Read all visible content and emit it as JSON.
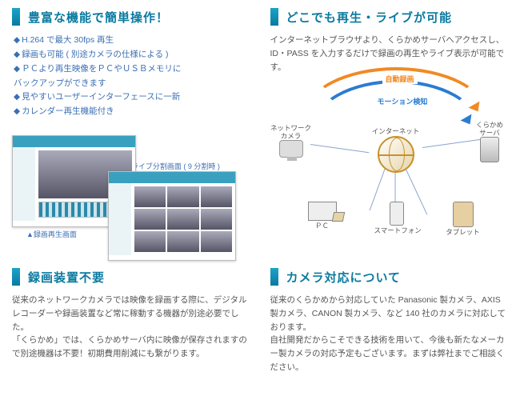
{
  "sections": {
    "features": {
      "title": "豊富な機能で簡単操作！",
      "bullets": [
        "H.264 で最大 30fps 再生",
        "録画も可能 ( 別途カメラの仕様による )",
        "ＰＣより再生映像をＰＣやＵＳＢメモリに\nバックアップができます",
        "見やすいユーザーインターフェースに一新",
        "カレンダー再生機能付き"
      ],
      "caption_left": "▲録画再生画面",
      "caption_right": "▼ライブ分割画面 ( 9 分割時 )"
    },
    "anywhere": {
      "title": "どこでも再生・ライブが可能",
      "desc": "インターネットブラウザより、くらかめサーバへアクセスし、ID・PASS を入力するだけで録画の再生やライブ表示が可能です。",
      "arc_orange": "自動録画",
      "arc_blue": "モーション検知",
      "nodes": {
        "nwcam": "ネットワーク\nカメラ",
        "internet": "インターネット",
        "server": "くらかめ\nサーバ",
        "pc": "ＰＣ",
        "phone": "スマートフォン",
        "tablet": "タブレット"
      },
      "colors": {
        "orange": "#f08a24",
        "blue": "#2b7cd1",
        "line": "#8aa4d0"
      }
    },
    "norec": {
      "title": "録画装置不要",
      "desc": "従来のネットワークカメラでは映像を録画する際に、デジタルレコーダーや録画装置など常に稼動する機器が別途必要でした。\n「くらかめ」では、くらかめサーバ内に映像が保存されますので別途機器は不要！初期費用削減にも繋がります。"
    },
    "camera": {
      "title": "カメラ対応について",
      "desc": "従来のくらかめから対応していた Panasonic 製カメラ、AXIS 製カメラ、CANON 製カメラ、など 140 社のカメラに対応しております。\n自社開発だからこそできる技術を用いて、今後も新たなメーカー製カメラの対応予定もございます。まずは弊社までご相談ください。"
    }
  }
}
